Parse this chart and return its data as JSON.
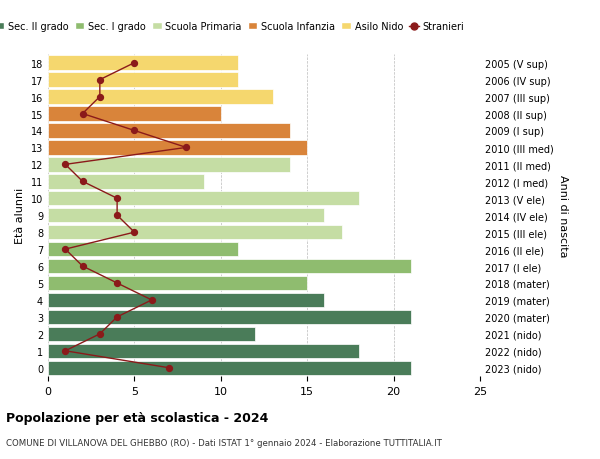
{
  "ages": [
    18,
    17,
    16,
    15,
    14,
    13,
    12,
    11,
    10,
    9,
    8,
    7,
    6,
    5,
    4,
    3,
    2,
    1,
    0
  ],
  "years": [
    "2005 (V sup)",
    "2006 (IV sup)",
    "2007 (III sup)",
    "2008 (II sup)",
    "2009 (I sup)",
    "2010 (III med)",
    "2011 (II med)",
    "2012 (I med)",
    "2013 (V ele)",
    "2014 (IV ele)",
    "2015 (III ele)",
    "2016 (II ele)",
    "2017 (I ele)",
    "2018 (mater)",
    "2019 (mater)",
    "2020 (mater)",
    "2021 (nido)",
    "2022 (nido)",
    "2023 (nido)"
  ],
  "values": [
    21,
    18,
    12,
    21,
    16,
    15,
    21,
    11,
    17,
    16,
    18,
    9,
    14,
    15,
    14,
    10,
    13,
    11,
    11
  ],
  "bar_colors": [
    "#4a7c59",
    "#4a7c59",
    "#4a7c59",
    "#4a7c59",
    "#4a7c59",
    "#8fbc6f",
    "#8fbc6f",
    "#8fbc6f",
    "#c5dda4",
    "#c5dda4",
    "#c5dda4",
    "#c5dda4",
    "#c5dda4",
    "#d9843a",
    "#d9843a",
    "#d9843a",
    "#f5d76e",
    "#f5d76e",
    "#f5d76e"
  ],
  "stranieri_values": [
    7,
    1,
    3,
    4,
    6,
    4,
    2,
    1,
    5,
    4,
    4,
    2,
    1,
    8,
    5,
    2,
    3,
    3,
    5
  ],
  "title": "Popolazione per età scolastica - 2024",
  "subtitle": "COMUNE DI VILLANOVA DEL GHEBBO (RO) - Dati ISTAT 1° gennaio 2024 - Elaborazione TUTTITALIA.IT",
  "ylabel": "Età alunni",
  "ylabel_right": "Anni di nascita",
  "xlim": [
    0,
    25
  ],
  "xticks": [
    0,
    5,
    10,
    15,
    20,
    25
  ],
  "legend_labels": [
    "Sec. II grado",
    "Sec. I grado",
    "Scuola Primaria",
    "Scuola Infanzia",
    "Asilo Nido",
    "Stranieri"
  ],
  "legend_colors": [
    "#4a7c59",
    "#8fbc6f",
    "#c5dda4",
    "#d9843a",
    "#f5d76e",
    "#8b1a1a"
  ],
  "stranieri_color": "#8b1a1a",
  "grid_color": "#bbbbbb",
  "bg_color": "#ffffff"
}
